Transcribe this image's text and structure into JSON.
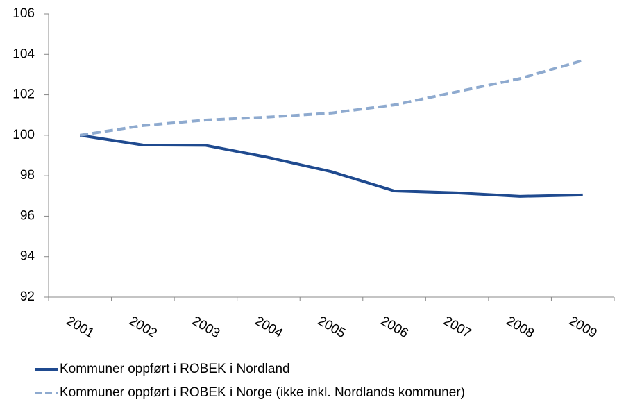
{
  "chart_data": {
    "type": "line",
    "categories": [
      "2001",
      "2002",
      "2003",
      "2004",
      "2005",
      "2006",
      "2007",
      "2008",
      "2009"
    ],
    "series": [
      {
        "name": "Kommuner oppført i ROBEK i Nordland",
        "color": "#1f4a8f",
        "line_style": "solid",
        "values": [
          100,
          99.52,
          99.5,
          98.9,
          98.2,
          97.25,
          97.15,
          96.98,
          97.05
        ]
      },
      {
        "name": "Kommuner oppført i ROBEK i Norge (ikke inkl. Nordlands kommuner)",
        "color": "#8eaacf",
        "line_style": "dashed",
        "values": [
          100,
          100.48,
          100.75,
          100.9,
          101.1,
          101.5,
          102.15,
          102.8,
          103.7
        ]
      }
    ],
    "ylim": [
      92,
      106
    ],
    "yticks": [
      92,
      94,
      96,
      98,
      100,
      102,
      104,
      106
    ],
    "grid": false
  }
}
